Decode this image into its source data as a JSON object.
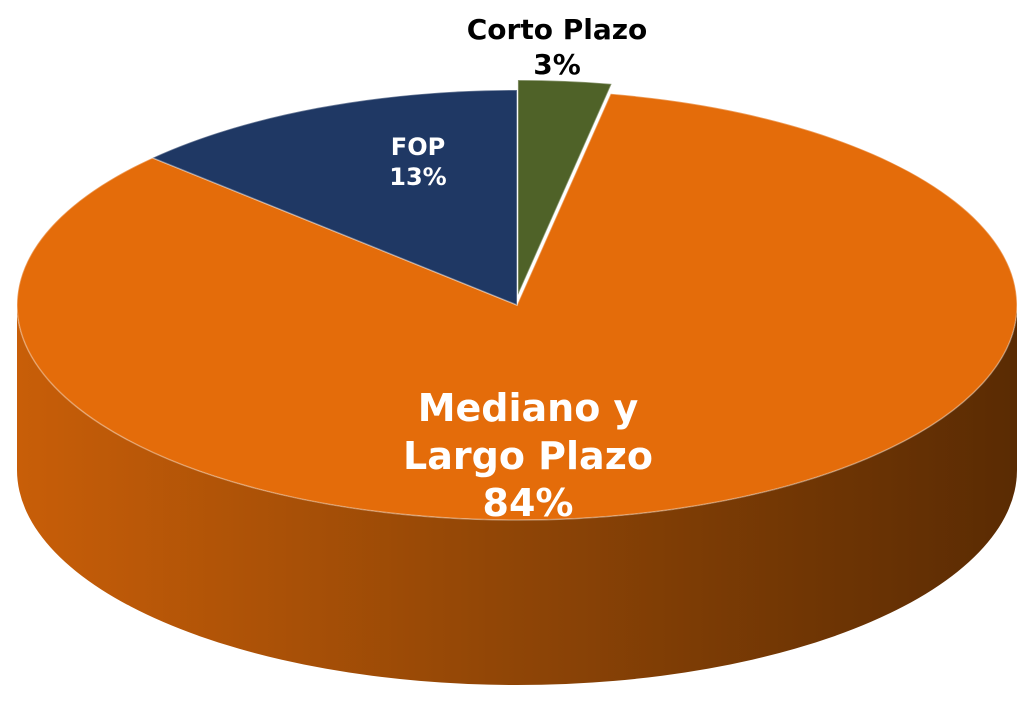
{
  "chart_data": {
    "type": "pie",
    "categories": [
      "Corto Plazo",
      "Mediano y Largo Plazo",
      "FOP"
    ],
    "values": [
      3,
      84,
      13
    ],
    "value_labels": [
      "3%",
      "84%",
      "13%"
    ],
    "colors": [
      "#4f6228",
      "#e46c0a",
      "#1f3864"
    ]
  }
}
